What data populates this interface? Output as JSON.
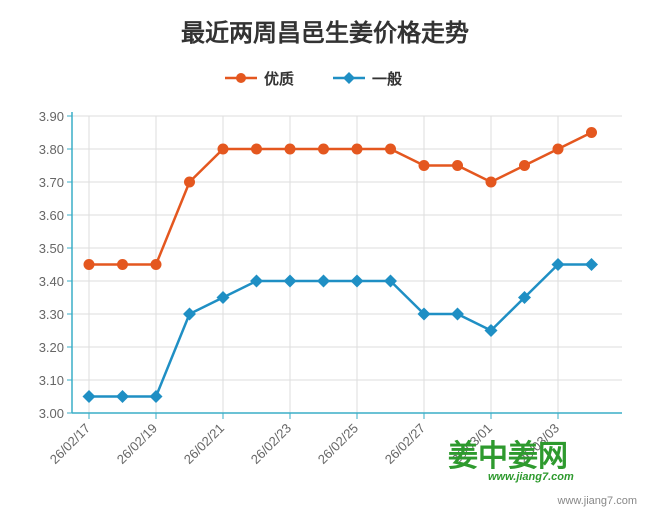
{
  "chart_data": {
    "type": "line",
    "title": "最近两周昌邑生姜价格走势",
    "categories": [
      "26/02/17",
      "26/02/18",
      "26/02/19",
      "26/02/20",
      "26/02/21",
      "26/02/22",
      "26/02/23",
      "26/02/24",
      "26/02/25",
      "26/02/26",
      "26/02/27",
      "26/02/28",
      "26/03/01",
      "26/03/02",
      "26/03/03",
      "26/03/04"
    ],
    "x_tick_labels": [
      "26/02/17",
      "26/02/19",
      "26/02/21",
      "26/02/23",
      "26/02/25",
      "26/02/27",
      "26/03/01",
      "26/03/03"
    ],
    "y_tick_labels": [
      "3.00",
      "3.10",
      "3.20",
      "3.30",
      "3.40",
      "3.50",
      "3.60",
      "3.70",
      "3.80",
      "3.90"
    ],
    "ylim": [
      3.0,
      3.9
    ],
    "xlabel": "",
    "ylabel": "",
    "grid": true,
    "legend_position": "top-center",
    "series": [
      {
        "name": "优质",
        "color": "#e4571f",
        "marker": "circle",
        "values": [
          3.45,
          3.45,
          3.45,
          3.7,
          3.8,
          3.8,
          3.8,
          3.8,
          3.8,
          3.8,
          3.75,
          3.75,
          3.7,
          3.75,
          3.8,
          3.85
        ]
      },
      {
        "name": "一般",
        "color": "#1f8fc4",
        "marker": "diamond",
        "values": [
          3.05,
          3.05,
          3.05,
          3.3,
          3.35,
          3.4,
          3.4,
          3.4,
          3.4,
          3.4,
          3.3,
          3.3,
          3.25,
          3.35,
          3.45,
          3.45
        ]
      }
    ]
  },
  "logo": {
    "text": "姜中姜网",
    "url": "www.jiang7.com"
  },
  "watermark": "www.jiang7.com",
  "colors": {
    "axis": "#3aaec7",
    "grid": "#dddddd",
    "logo": "#2e9a2e"
  }
}
